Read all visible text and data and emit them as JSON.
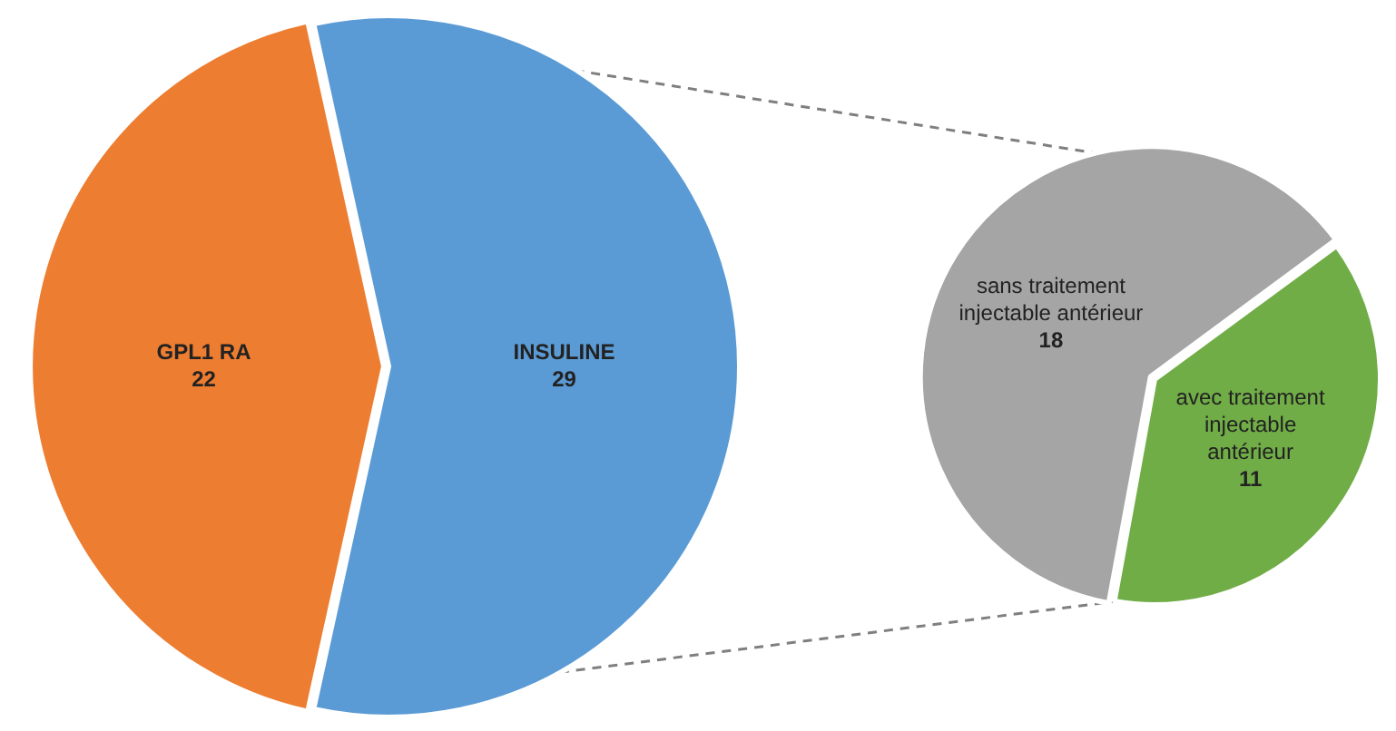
{
  "chart_data": [
    {
      "type": "pie",
      "categories": [
        "GPL1 RA",
        "INSULINE"
      ],
      "values": [
        22,
        29
      ],
      "colors": [
        "#ed7d31",
        "#5b9bd5"
      ],
      "data_labels": true
    },
    {
      "type": "pie",
      "categories": [
        "sans traitement injectable antérieur",
        "avec traitement injectable antérieur"
      ],
      "values": [
        18,
        11
      ],
      "colors": [
        "#a5a5a5",
        "#70ad47"
      ],
      "data_labels": true
    }
  ]
}
